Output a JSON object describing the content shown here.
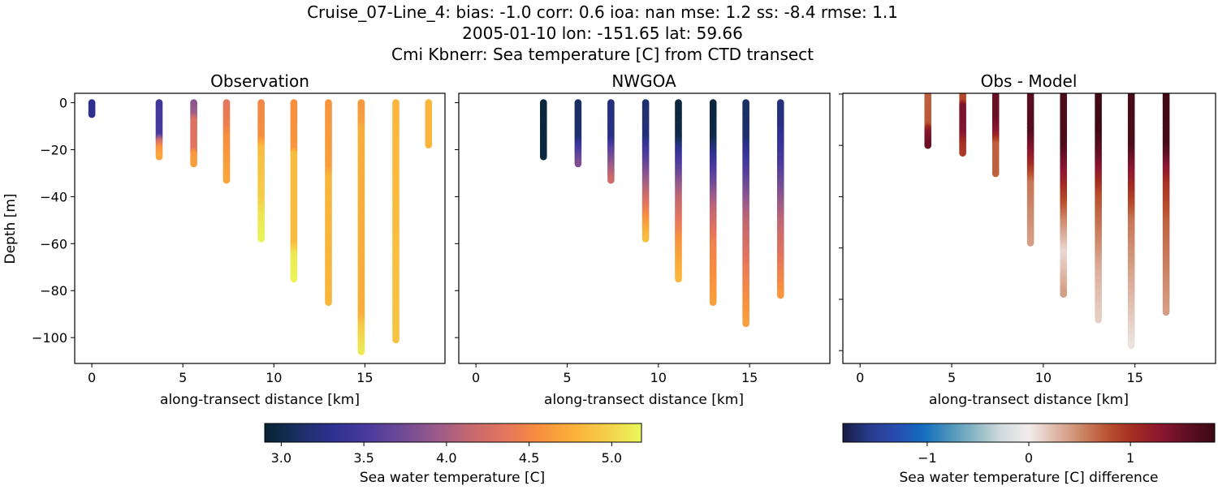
{
  "title_lines": [
    "Cruise_07-Line_4: bias: -1.0  corr: 0.6  ioa: nan  mse: 1.2  ss: -8.4  rmse: 1.1",
    "2005-01-10 lon: -151.65 lat: 59.66",
    "Cmi Kbnerr: Sea temperature [C] from CTD transect"
  ],
  "chart_data": [
    {
      "type": "scatter",
      "title": "Observation",
      "xlabel": "along-transect distance [km]",
      "ylabel": "Depth [m]",
      "xlim": [
        -0.94,
        19.4
      ],
      "ylim": [
        -111,
        4
      ],
      "xticks": [
        0,
        5,
        10,
        15
      ],
      "yticks": [
        0,
        -20,
        -40,
        -60,
        -80,
        -100
      ],
      "xtick_labels": [
        "0",
        "5",
        "10",
        "15"
      ],
      "ytick_labels": [
        "0",
        "−20",
        "−40",
        "−60",
        "−80",
        "−100"
      ],
      "colormap": "thermal",
      "profiles": [
        {
          "x": 0.0,
          "max_depth": 5,
          "values": [
            [
              0,
              3.3
            ],
            [
              5,
              3.3
            ]
          ]
        },
        {
          "x": 3.7,
          "max_depth": 23,
          "values": [
            [
              0,
              3.45
            ],
            [
              14,
              3.5
            ],
            [
              17,
              4.3
            ],
            [
              20,
              4.6
            ],
            [
              23,
              4.7
            ]
          ]
        },
        {
          "x": 5.6,
          "max_depth": 26,
          "values": [
            [
              0,
              3.85
            ],
            [
              5,
              3.95
            ],
            [
              8,
              4.3
            ],
            [
              20,
              4.35
            ],
            [
              22,
              4.6
            ],
            [
              26,
              4.65
            ]
          ]
        },
        {
          "x": 7.4,
          "max_depth": 33,
          "values": [
            [
              0,
              4.35
            ],
            [
              10,
              4.45
            ],
            [
              15,
              4.55
            ],
            [
              33,
              4.7
            ]
          ]
        },
        {
          "x": 9.3,
          "max_depth": 58,
          "values": [
            [
              0,
              4.5
            ],
            [
              15,
              4.55
            ],
            [
              20,
              4.85
            ],
            [
              40,
              4.95
            ],
            [
              50,
              5.1
            ],
            [
              58,
              5.15
            ]
          ]
        },
        {
          "x": 11.1,
          "max_depth": 75,
          "values": [
            [
              0,
              4.55
            ],
            [
              20,
              4.6
            ],
            [
              22,
              4.85
            ],
            [
              60,
              4.85
            ],
            [
              65,
              5.1
            ],
            [
              75,
              5.15
            ]
          ]
        },
        {
          "x": 13.0,
          "max_depth": 85,
          "values": [
            [
              0,
              4.6
            ],
            [
              28,
              4.65
            ],
            [
              32,
              4.8
            ],
            [
              85,
              4.8
            ]
          ]
        },
        {
          "x": 14.8,
          "max_depth": 106,
          "values": [
            [
              0,
              4.6
            ],
            [
              8,
              4.65
            ],
            [
              12,
              4.75
            ],
            [
              90,
              4.75
            ],
            [
              96,
              4.95
            ],
            [
              106,
              5.1
            ]
          ]
        },
        {
          "x": 16.7,
          "max_depth": 101,
          "values": [
            [
              0,
              4.8
            ],
            [
              101,
              4.9
            ]
          ]
        },
        {
          "x": 18.5,
          "max_depth": 18,
          "values": [
            [
              0,
              4.8
            ],
            [
              18,
              4.8
            ]
          ]
        }
      ]
    },
    {
      "type": "scatter",
      "title": "NWGOA",
      "xlabel": "along-transect distance [km]",
      "xlim": [
        -0.94,
        19.4
      ],
      "ylim": [
        -111,
        4
      ],
      "xticks": [
        0,
        5,
        10,
        15
      ],
      "yticks": [
        0,
        -20,
        -40,
        -60,
        -80,
        -100
      ],
      "xtick_labels": [
        "0",
        "5",
        "10",
        "15"
      ],
      "colormap": "thermal",
      "profiles": [
        {
          "x": 3.7,
          "max_depth": 23,
          "values": [
            [
              0,
              2.95
            ],
            [
              23,
              2.97
            ]
          ]
        },
        {
          "x": 5.6,
          "max_depth": 26,
          "values": [
            [
              0,
              3.1
            ],
            [
              15,
              3.15
            ],
            [
              20,
              3.5
            ],
            [
              26,
              3.8
            ]
          ]
        },
        {
          "x": 7.4,
          "max_depth": 33,
          "values": [
            [
              0,
              3.2
            ],
            [
              15,
              3.25
            ],
            [
              20,
              3.6
            ],
            [
              33,
              4.2
            ]
          ]
        },
        {
          "x": 9.3,
          "max_depth": 58,
          "values": [
            [
              0,
              3.15
            ],
            [
              15,
              3.2
            ],
            [
              20,
              3.45
            ],
            [
              35,
              4.0
            ],
            [
              50,
              4.6
            ],
            [
              58,
              4.85
            ]
          ]
        },
        {
          "x": 11.1,
          "max_depth": 75,
          "values": [
            [
              0,
              2.95
            ],
            [
              15,
              3.0
            ],
            [
              20,
              3.3
            ],
            [
              40,
              4.1
            ],
            [
              60,
              4.6
            ],
            [
              75,
              4.8
            ]
          ]
        },
        {
          "x": 13.0,
          "max_depth": 85,
          "values": [
            [
              0,
              2.95
            ],
            [
              15,
              3.0
            ],
            [
              25,
              3.4
            ],
            [
              45,
              4.1
            ],
            [
              60,
              4.45
            ],
            [
              85,
              4.65
            ]
          ]
        },
        {
          "x": 14.8,
          "max_depth": 94,
          "values": [
            [
              0,
              3.1
            ],
            [
              15,
              3.15
            ],
            [
              25,
              3.45
            ],
            [
              50,
              4.1
            ],
            [
              70,
              4.4
            ],
            [
              94,
              4.65
            ]
          ]
        },
        {
          "x": 16.7,
          "max_depth": 82,
          "values": [
            [
              0,
              3.2
            ],
            [
              10,
              3.25
            ],
            [
              25,
              3.5
            ],
            [
              50,
              4.1
            ],
            [
              82,
              4.6
            ]
          ]
        }
      ]
    },
    {
      "type": "scatter",
      "title": "Obs - Model",
      "xlabel": "along-transect distance [km]",
      "xlim": [
        -0.94,
        19.4
      ],
      "ylim": [
        -105,
        0.3
      ],
      "xticks": [
        0,
        5,
        10,
        15
      ],
      "yticks": [
        0,
        -20,
        -40,
        -60,
        -80,
        -100
      ],
      "xtick_labels": [
        "0",
        "5",
        "10",
        "15"
      ],
      "colormap": "balance",
      "profiles": [
        {
          "x": 3.7,
          "max_depth": 20,
          "values": [
            [
              0,
              0.7
            ],
            [
              12,
              0.75
            ],
            [
              15,
              1.3
            ],
            [
              20,
              1.5
            ]
          ]
        },
        {
          "x": 5.6,
          "max_depth": 23,
          "values": [
            [
              0,
              0.8
            ],
            [
              3,
              0.85
            ],
            [
              5,
              1.4
            ],
            [
              15,
              1.35
            ],
            [
              20,
              1.0
            ],
            [
              23,
              0.95
            ]
          ]
        },
        {
          "x": 7.4,
          "max_depth": 31,
          "values": [
            [
              0,
              1.5
            ],
            [
              10,
              1.5
            ],
            [
              15,
              1.3
            ],
            [
              20,
              0.7
            ],
            [
              31,
              0.7
            ]
          ]
        },
        {
          "x": 9.3,
          "max_depth": 58,
          "values": [
            [
              0,
              1.6
            ],
            [
              15,
              1.65
            ],
            [
              25,
              1.2
            ],
            [
              35,
              0.6
            ],
            [
              58,
              0.4
            ]
          ]
        },
        {
          "x": 11.1,
          "max_depth": 78,
          "values": [
            [
              0,
              1.7
            ],
            [
              20,
              1.7
            ],
            [
              30,
              1.3
            ],
            [
              50,
              0.5
            ],
            [
              62,
              0.1
            ],
            [
              78,
              0.4
            ]
          ]
        },
        {
          "x": 13.0,
          "max_depth": 88,
          "values": [
            [
              0,
              1.8
            ],
            [
              15,
              1.8
            ],
            [
              25,
              1.5
            ],
            [
              40,
              0.8
            ],
            [
              70,
              0.3
            ],
            [
              88,
              0.15
            ]
          ]
        },
        {
          "x": 14.8,
          "max_depth": 98,
          "values": [
            [
              0,
              1.75
            ],
            [
              20,
              1.7
            ],
            [
              35,
              1.1
            ],
            [
              50,
              0.6
            ],
            [
              98,
              0.05
            ]
          ]
        },
        {
          "x": 16.7,
          "max_depth": 85,
          "values": [
            [
              0,
              1.8
            ],
            [
              20,
              1.75
            ],
            [
              35,
              1.0
            ],
            [
              50,
              0.7
            ],
            [
              85,
              0.4
            ]
          ]
        }
      ]
    }
  ],
  "colorbars": [
    {
      "label": "Sea water temperature [C]",
      "range": [
        2.9,
        5.18
      ],
      "ticks": [
        3.0,
        3.5,
        4.0,
        4.5,
        5.0
      ],
      "tick_labels": [
        "3.0",
        "3.5",
        "4.0",
        "4.5",
        "5.0"
      ],
      "colormap": "thermal"
    },
    {
      "label": "Sea water temperature [C] difference",
      "range": [
        -1.83,
        1.83
      ],
      "ticks": [
        -1,
        0,
        1
      ],
      "tick_labels": [
        "−1",
        "0",
        "1"
      ],
      "colormap": "balance"
    }
  ],
  "colormaps": {
    "thermal": [
      "#072331",
      "#1a2f63",
      "#2f3193",
      "#4a3a9e",
      "#6e4a95",
      "#9a5a8a",
      "#c4686f",
      "#e3745e",
      "#f78f3f",
      "#fbb03a",
      "#f4cf48",
      "#e8f95a"
    ],
    "balance": [
      "#181c43",
      "#283c8c",
      "#2a4bb0",
      "#0f6cc0",
      "#4b93bb",
      "#8db8c4",
      "#d4dcdd",
      "#f0eceb",
      "#dfb8a8",
      "#cc8566",
      "#b8502e",
      "#a12a22",
      "#8a1630",
      "#5e0f22",
      "#3c0912"
    ]
  }
}
